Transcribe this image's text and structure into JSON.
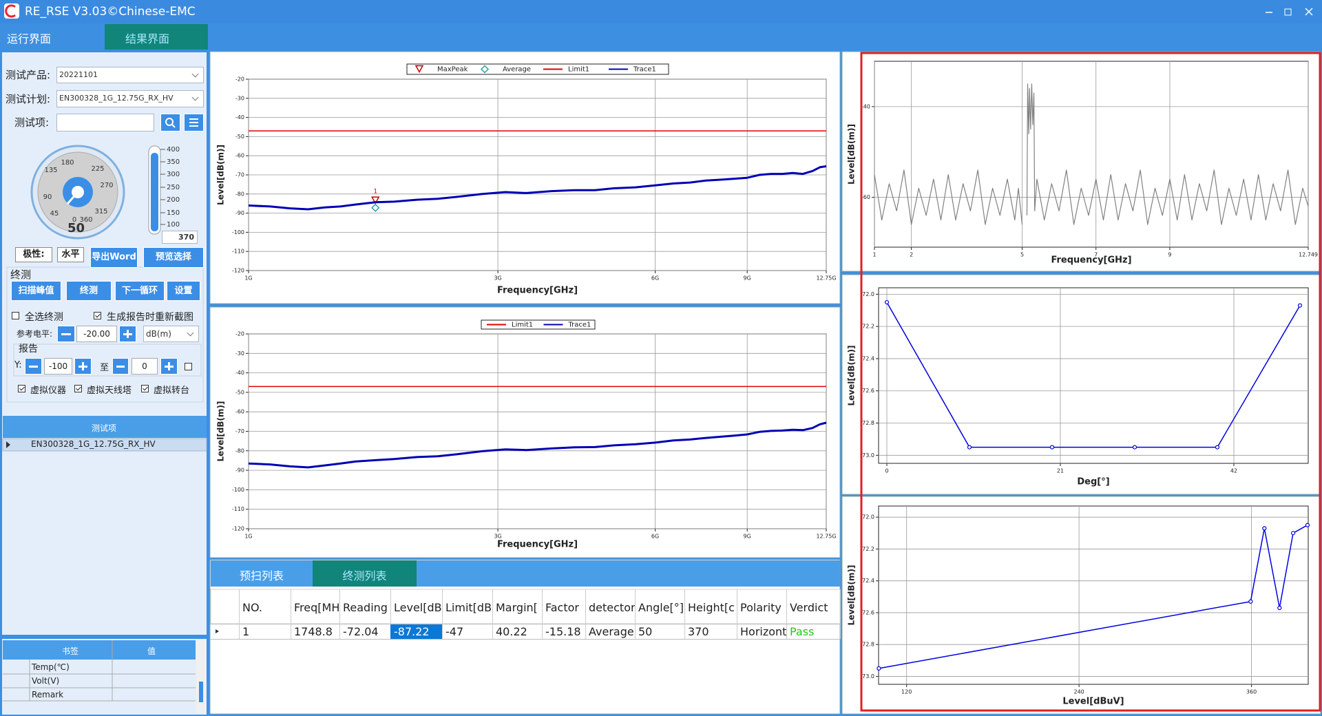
{
  "window": {
    "title": "RE_RSE V3.03©Chinese-EMC",
    "tabs": [
      "运行界面",
      "结果界面"
    ]
  },
  "left_panel": {
    "product_label": "测试产品:",
    "product": "20221101",
    "plan_label": "测试计划:",
    "plan": "EN300328_1G_12.75G_RX_HV",
    "item_label": "测试项:",
    "dial": {
      "labels": [
        "180",
        "135",
        "225",
        "90",
        "270",
        "45",
        "315",
        "0",
        "360"
      ],
      "value": "50"
    },
    "thermometer": {
      "labels": [
        "400",
        "350",
        "300",
        "250",
        "200",
        "150",
        "100"
      ],
      "value": "370"
    },
    "polarity_label": "极性:",
    "polarity": "水平",
    "export_button": "导出Word",
    "preview_button": "预览选择",
    "final_group": "终测",
    "buttons": [
      "扫描峰值",
      "终测",
      "下一循环",
      "设置"
    ],
    "select_all": "全选终测",
    "recapture": "生成报告时重新截图",
    "ref_level_label": "参考电平:",
    "ref_level": "-20.00",
    "ref_unit": "dB(m)",
    "report_group": "报告",
    "y_label": "Y:",
    "y_from": "-100",
    "to_label": "至",
    "y_to": "0",
    "virtual": [
      "虚拟仪器",
      "虚拟天线塔",
      "虚拟转台"
    ],
    "test_items": {
      "header": "测试项",
      "rows": [
        "EN300328_1G_12.75G_RX_HV"
      ]
    },
    "bookmarks": {
      "headers": [
        "书签",
        "值"
      ],
      "rows": [
        "Temp(℃)",
        "Volt(V)",
        "Remark"
      ]
    }
  },
  "result_table": {
    "tabs": [
      "预扫列表",
      "终测列表"
    ],
    "columns": [
      "NO.",
      "Freq[MH",
      "Reading",
      "Level[dB",
      "Limit[dB",
      "Margin[",
      "Factor",
      "detector",
      "Angle[°]",
      "Height[c",
      "Polarity",
      "Verdict"
    ],
    "rows": [
      [
        1,
        1748.8,
        -72.04,
        -87.22,
        -47,
        40.22,
        -15.18,
        "Average",
        50,
        370,
        "Horizonta",
        "Pass"
      ]
    ]
  },
  "chart_data": [
    {
      "type": "line",
      "x_label": "Frequency[GHz]",
      "y_label": "Level[dB(m)]",
      "log_x": true,
      "grid": true,
      "xlim": [
        1,
        12.75
      ],
      "ylim": [
        -20,
        -120
      ],
      "xticks": [
        {
          "value": 1,
          "label": "1G"
        },
        {
          "value": 3,
          "label": "3G"
        },
        {
          "value": 6,
          "label": "6G"
        },
        {
          "value": 9,
          "label": "9G"
        },
        {
          "value": 12.75,
          "label": "12.75G"
        }
      ],
      "yticks": [
        -20,
        -30,
        -40,
        -50,
        -60,
        -70,
        -80,
        -90,
        -100,
        -110,
        -120
      ],
      "series": [
        {
          "name": "MaxPeak",
          "color": "#c00000",
          "marker": "triangle",
          "label": "1",
          "x": [
            1.7488
          ],
          "values": [
            -83.4
          ]
        },
        {
          "name": "Average",
          "color": "#2aa0a0",
          "marker": "diamond",
          "x": [
            1.7488
          ],
          "values": [
            -87.22
          ]
        },
        {
          "name": "Limit1",
          "color": "#e00000",
          "x": [
            1,
            12.75
          ],
          "values": [
            -47,
            -47
          ]
        },
        {
          "name": "Trace1",
          "color": "#0000b4",
          "x": [
            1,
            1.1,
            1.2,
            1.3,
            1.4,
            1.5,
            1.6,
            1.75,
            1.9,
            2.1,
            2.3,
            2.5,
            2.8,
            3.1,
            3.4,
            3.8,
            4.2,
            4.6,
            5.0,
            5.5,
            6,
            6.5,
            7,
            7.5,
            8,
            8.5,
            9,
            9.5,
            10,
            10.5,
            11,
            11.5,
            12,
            12.4,
            12.75
          ],
          "values": [
            -86,
            -86.5,
            -87.5,
            -88,
            -87,
            -86.5,
            -85.5,
            -84.3,
            -84,
            -83,
            -82.5,
            -81.5,
            -80,
            -79,
            -79.5,
            -78.5,
            -78,
            -78,
            -77,
            -76.5,
            -75.5,
            -74.5,
            -74,
            -73,
            -72.5,
            -72,
            -71.5,
            -70,
            -69.5,
            -69.5,
            -69,
            -69.5,
            -68,
            -66,
            -65.5
          ]
        }
      ]
    },
    {
      "type": "line",
      "x_label": "Frequency[GHz]",
      "y_label": "Level[dB(m)]",
      "log_x": true,
      "grid": true,
      "xlim": [
        1,
        12.75
      ],
      "ylim": [
        -20,
        -120
      ],
      "xticks": [
        {
          "value": 1,
          "label": "1G"
        },
        {
          "value": 3,
          "label": "3G"
        },
        {
          "value": 6,
          "label": "6G"
        },
        {
          "value": 9,
          "label": "9G"
        },
        {
          "value": 12.75,
          "label": "12.75G"
        }
      ],
      "yticks": [
        -20,
        -30,
        -40,
        -50,
        -60,
        -70,
        -80,
        -90,
        -100,
        -110,
        -120
      ],
      "series": [
        {
          "name": "Limit1",
          "color": "#e00000",
          "x": [
            1,
            12.75
          ],
          "values": [
            -47,
            -47
          ]
        },
        {
          "name": "Trace1",
          "color": "#0000b4",
          "x": [
            1,
            1.1,
            1.2,
            1.3,
            1.4,
            1.5,
            1.6,
            1.75,
            1.9,
            2.1,
            2.3,
            2.5,
            2.8,
            3.1,
            3.4,
            3.8,
            4.2,
            4.6,
            5.0,
            5.5,
            6,
            6.5,
            7,
            7.5,
            8,
            8.5,
            9,
            9.5,
            10,
            10.5,
            11,
            11.5,
            12,
            12.4,
            12.75
          ],
          "values": [
            -86.5,
            -87,
            -88,
            -88.5,
            -87.5,
            -86.5,
            -85.5,
            -84.8,
            -84.2,
            -83.2,
            -82.8,
            -81.8,
            -80.2,
            -79.3,
            -79.6,
            -78.8,
            -78.2,
            -78.1,
            -77.2,
            -76.6,
            -75.8,
            -74.7,
            -74.2,
            -73.4,
            -72.8,
            -72.2,
            -71.6,
            -70.3,
            -69.8,
            -69.6,
            -69.2,
            -69.4,
            -68.3,
            -66.4,
            -65.6
          ]
        }
      ]
    },
    {
      "type": "line",
      "x_label": "Frequency[GHz]",
      "y_label": "Level[dB(m)]",
      "grid": true,
      "xlim": [
        1,
        12.749
      ],
      "ylim": [
        -30,
        -71
      ],
      "xticks": [
        1,
        2,
        5,
        7,
        9,
        12.749
      ],
      "yticks": [
        -40,
        -60
      ],
      "series": [
        {
          "color": "#808080",
          "x": [
            1.0,
            1.2,
            1.4,
            1.6,
            1.8,
            2.0,
            2.2,
            2.4,
            2.6,
            2.8,
            3.0,
            3.2,
            3.4,
            3.6,
            3.8,
            4.0,
            4.2,
            4.4,
            4.6,
            4.8,
            4.9,
            5.0,
            5.05,
            5.13,
            5.15,
            5.18,
            5.2,
            5.23,
            5.26,
            5.29,
            5.32,
            5.34,
            5.4,
            5.6,
            5.8,
            6.0,
            6.2,
            6.4,
            6.6,
            6.8,
            7.0,
            7.2,
            7.4,
            7.6,
            7.8,
            8.0,
            8.2,
            8.4,
            8.6,
            8.8,
            9.0,
            9.2,
            9.4,
            9.6,
            9.8,
            10.0,
            10.2,
            10.4,
            10.6,
            10.8,
            11.0,
            11.2,
            11.4,
            11.6,
            11.8,
            12.0,
            12.2,
            12.4,
            12.6,
            12.749
          ],
          "values": [
            -55,
            -65,
            -57,
            -63,
            -54,
            -66,
            -58,
            -64,
            -56,
            -65,
            -55,
            -65,
            -57,
            -63,
            -54,
            -66,
            -58,
            -64,
            -56,
            -65,
            -58,
            -66,
            null,
            -64,
            -35,
            -46,
            -36,
            -45,
            -35,
            -44,
            -37,
            -63,
            -56,
            -65,
            -57,
            -63,
            -54,
            -66,
            -58,
            -64,
            -56,
            -65,
            -55,
            -65,
            -57,
            -63,
            -54,
            -66,
            -58,
            -64,
            -56,
            -65,
            -55,
            -65,
            -57,
            -63,
            -54,
            -66,
            -58,
            -64,
            -56,
            -65,
            -55,
            -65,
            -57,
            -63,
            -54,
            -66,
            -58,
            -62
          ]
        }
      ]
    },
    {
      "type": "line",
      "x_label": "Deg[°]",
      "y_label": "Level[dB(m)]",
      "grid": true,
      "xlim": [
        -1,
        51
      ],
      "ylim": [
        -71.96,
        -73.05
      ],
      "xticks": [
        0,
        21,
        42
      ],
      "yticks": [
        {
          "value": -72,
          "label": "-72.0"
        },
        -72.2,
        -72.4,
        -72.6,
        -72.8,
        {
          "value": -73,
          "label": "-73.0"
        }
      ],
      "series": [
        {
          "color": "#0000e0",
          "points": true,
          "x": [
            0,
            10,
            20,
            30,
            40,
            50
          ],
          "values": [
            -72.05,
            -72.95,
            -72.95,
            -72.95,
            -72.95,
            -72.07
          ]
        }
      ]
    },
    {
      "type": "line",
      "x_label": "Level[dBuV]",
      "y_label": "Level[dB(m)]",
      "grid": true,
      "xlim": [
        100.5,
        399.5
      ],
      "ylim": [
        -71.93,
        -73.05
      ],
      "xticks": [
        120,
        240,
        360
      ],
      "yticks": [
        {
          "value": -72,
          "label": "-72.0"
        },
        -72.2,
        -72.4,
        -72.6,
        -72.8,
        {
          "value": -73,
          "label": "-73.0"
        }
      ],
      "series": [
        {
          "color": "#0000e0",
          "points": true,
          "x": [
            100.7,
            359.4,
            369,
            379.5,
            389,
            399
          ],
          "values": [
            -72.95,
            -72.53,
            -72.07,
            -72.57,
            -72.1,
            -72.05
          ]
        }
      ]
    }
  ]
}
